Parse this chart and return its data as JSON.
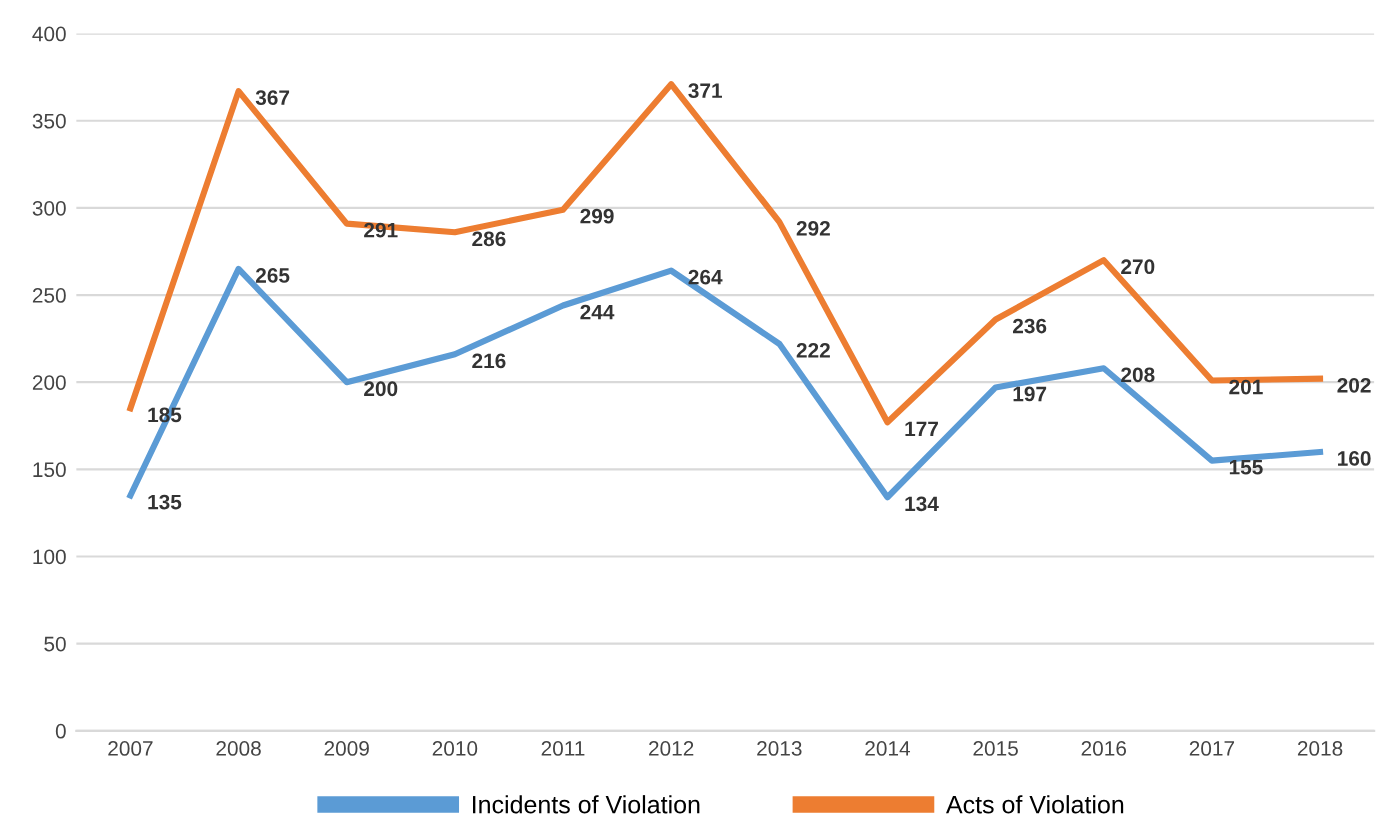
{
  "chart_data": {
    "type": "line",
    "categories": [
      "2007",
      "2008",
      "2009",
      "2010",
      "2011",
      "2012",
      "2013",
      "2014",
      "2015",
      "2016",
      "2017",
      "2018"
    ],
    "series": [
      {
        "name": "Incidents of Violation",
        "color": "#5b9bd5",
        "values": [
          135,
          265,
          200,
          216,
          244,
          264,
          222,
          134,
          197,
          208,
          155,
          160
        ]
      },
      {
        "name": "Acts of Violation",
        "color": "#ed7d31",
        "values": [
          185,
          367,
          291,
          286,
          299,
          371,
          292,
          177,
          236,
          270,
          201,
          202
        ]
      }
    ],
    "ylim": [
      0,
      400
    ],
    "yticks": [
      0,
      50,
      100,
      150,
      200,
      250,
      300,
      350,
      400
    ],
    "grid": "y",
    "legend": "bottom",
    "data_labels": true,
    "marker": "none",
    "line_style": "solid"
  }
}
